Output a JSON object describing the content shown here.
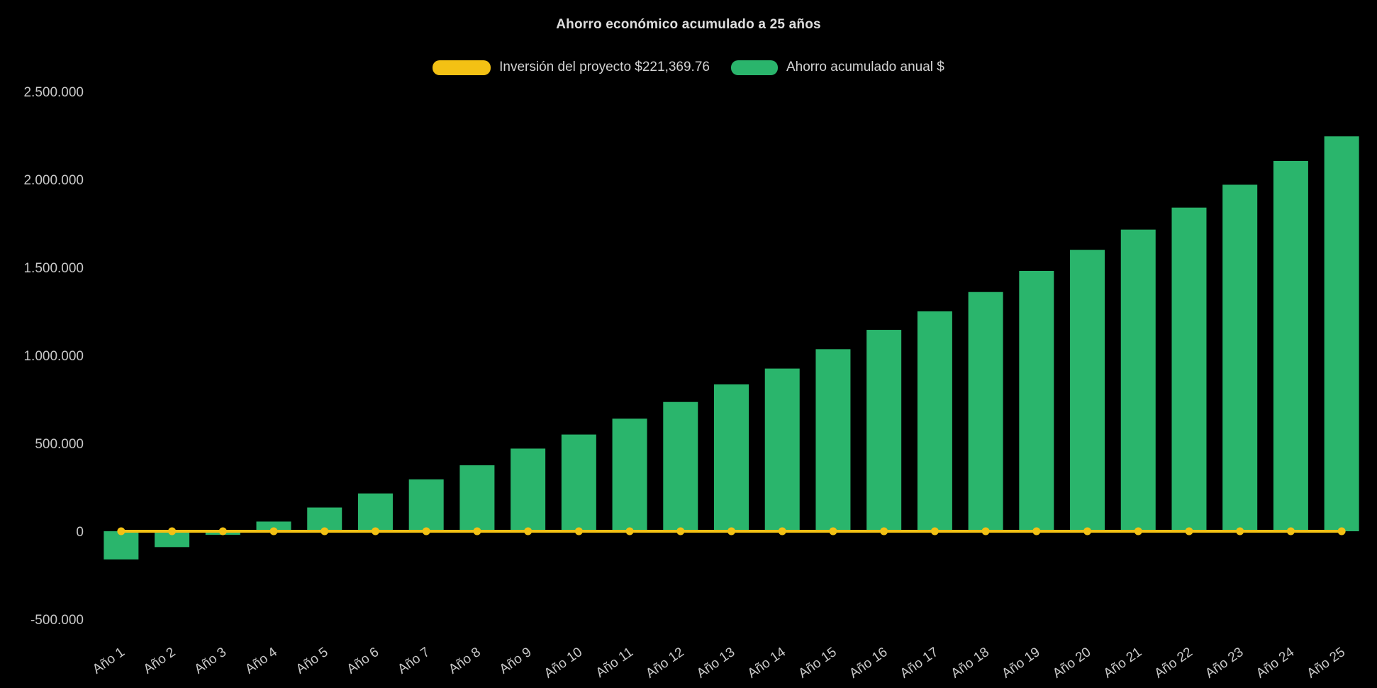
{
  "chart_data": {
    "type": "bar",
    "title": "Ahorro económico acumulado a 25 años",
    "background": "#000000",
    "axis_text_color": "#c9c9c9",
    "grid": false,
    "legend_position": "top",
    "categories": [
      "Año 1",
      "Año 2",
      "Año 3",
      "Año 4",
      "Año 5",
      "Año 6",
      "Año 7",
      "Año 8",
      "Año 9",
      "Año 10",
      "Año 11",
      "Año 12",
      "Año 13",
      "Año 14",
      "Año 15",
      "Año 16",
      "Año 17",
      "Año 18",
      "Año 19",
      "Año 20",
      "Año 21",
      "Año 22",
      "Año 23",
      "Año 24",
      "Año 25"
    ],
    "series": [
      {
        "name": "Inversión del proyecto $221,369.76",
        "type": "line",
        "color": "#F3C114",
        "values": [
          0,
          0,
          0,
          0,
          0,
          0,
          0,
          0,
          0,
          0,
          0,
          0,
          0,
          0,
          0,
          0,
          0,
          0,
          0,
          0,
          0,
          0,
          0,
          0,
          0
        ]
      },
      {
        "name": "Ahorro acumulado anual $",
        "type": "bar",
        "color": "#2AB56C",
        "values": [
          -160000,
          -90000,
          -20000,
          55000,
          135000,
          215000,
          295000,
          375000,
          470000,
          550000,
          640000,
          735000,
          835000,
          925000,
          1035000,
          1145000,
          1250000,
          1360000,
          1480000,
          1600000,
          1715000,
          1840000,
          1970000,
          2105000,
          2245000
        ]
      }
    ],
    "y_axis": {
      "min": -500000,
      "max": 2500000,
      "ticks": [
        {
          "value": 2500000,
          "label": "2.500.000"
        },
        {
          "value": 2000000,
          "label": "2.000.000"
        },
        {
          "value": 1500000,
          "label": "1.500.000"
        },
        {
          "value": 1000000,
          "label": "1.000.000"
        },
        {
          "value": 500000,
          "label": "500.000"
        },
        {
          "value": 0,
          "label": "0"
        },
        {
          "value": -500000,
          "label": "-500.000"
        }
      ]
    }
  }
}
